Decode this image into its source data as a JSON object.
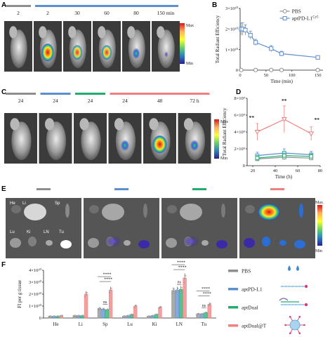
{
  "panels": {
    "A": {
      "label": "A",
      "groups": [
        {
          "color": "#8e8e8e",
          "times": [
            "2"
          ]
        },
        {
          "color": "#5b8fcf",
          "times": [
            "2",
            "30",
            "60",
            "80",
            "150 min"
          ]
        }
      ]
    },
    "C": {
      "label": "C",
      "groups": [
        {
          "color": "#8e8e8e",
          "times": [
            "24"
          ]
        },
        {
          "color": "#5b8fcf",
          "times": [
            "24"
          ]
        },
        {
          "color": "#1fae6e",
          "times": [
            "24"
          ]
        },
        {
          "color": "#f07f7f",
          "times": [
            "24",
            "48",
            "72 h"
          ]
        }
      ]
    },
    "E": {
      "label": "E",
      "organs_top": [
        "He",
        "Li",
        "Sp"
      ],
      "organs_bottom": [
        "Lu",
        "Ki",
        "LN",
        "Tu"
      ],
      "bars": [
        "#8e8e8e",
        "#5b8fcf",
        "#1fae6e",
        "#f07f7f"
      ]
    },
    "colorbar": {
      "max": "Max",
      "min": "Min"
    }
  },
  "chart_data": [
    {
      "panel": "B",
      "type": "line",
      "ylabel": "Total Radiant Efficiency",
      "xlabel": "Time (min)",
      "x_ticks": [
        "0",
        "50",
        "100",
        "150"
      ],
      "y_ticks": [
        "0",
        "1×10¹⁰",
        "2×10¹⁰",
        "3×10¹⁰"
      ],
      "xlim": [
        0,
        160
      ],
      "ylim": [
        0,
        30000000000.0
      ],
      "series": [
        {
          "name": "PBS",
          "color": "#8e8e8e",
          "marker": "circle",
          "x": [
            2,
            30,
            60,
            80,
            150
          ],
          "y": [
            100000000.0,
            100000000.0,
            100000000.0,
            100000000.0,
            100000000.0
          ],
          "err": [
            100000000.0,
            100000000.0,
            100000000.0,
            100000000.0,
            100000000.0
          ]
        },
        {
          "name": "aptPD-L1",
          "name_sup": "Cy5",
          "color": "#5b8fcf",
          "marker": "square",
          "x": [
            2,
            5,
            10,
            20,
            30,
            60,
            80,
            150
          ],
          "y": [
            20000000000.0,
            20000000000.0,
            19500000000.0,
            17000000000.0,
            13500000000.0,
            10500000000.0,
            8000000000.0,
            6200000000.0
          ],
          "err": [
            3000000000.0,
            3000000000.0,
            2500000000.0,
            2000000000.0,
            1500000000.0,
            1500000000.0,
            1200000000.0,
            500000000.0
          ]
        }
      ],
      "legend_position": "top-right"
    },
    {
      "panel": "D",
      "type": "line",
      "ylabel": "Total Radiant Efficiency",
      "xlabel": "Time (h)",
      "x_ticks": [
        "20",
        "40",
        "60",
        "80"
      ],
      "y_ticks": [
        "0",
        "2×10⁹",
        "4×10⁹",
        "6×10⁹",
        "8×10⁹"
      ],
      "xlim": [
        15,
        80
      ],
      "ylim": [
        0,
        8000000000.0
      ],
      "annotations": [
        "**",
        "**",
        "**"
      ],
      "series": [
        {
          "name": "PBS",
          "color": "#8e8e8e",
          "x": [
            24,
            48,
            72
          ],
          "y": [
            800000000.0,
            1000000000.0,
            900000000.0
          ],
          "err": [
            200000000.0,
            300000000.0,
            200000000.0
          ]
        },
        {
          "name": "aptPD-L1",
          "color": "#5b8fcf",
          "x": [
            24,
            48,
            72
          ],
          "y": [
            1200000000.0,
            1500000000.0,
            1300000000.0
          ],
          "err": [
            400000000.0,
            500000000.0,
            400000000.0
          ]
        },
        {
          "name": "aptDual",
          "color": "#1fae6e",
          "x": [
            24,
            48,
            72
          ],
          "y": [
            900000000.0,
            1200000000.0,
            1100000000.0
          ],
          "err": [
            300000000.0,
            300000000.0,
            300000000.0
          ]
        },
        {
          "name": "aptDual@T",
          "color": "#f07f7f",
          "x": [
            24,
            48,
            72
          ],
          "y": [
            4000000000.0,
            5500000000.0,
            3800000000.0
          ],
          "err": [
            1000000000.0,
            1600000000.0,
            800000000.0
          ]
        }
      ]
    },
    {
      "panel": "F",
      "type": "bar",
      "ylabel": "FI per g tissue",
      "categories": [
        "He",
        "Li",
        "Sp",
        "Lu",
        "Ki",
        "LN",
        "Tu"
      ],
      "y_ticks": [
        "0",
        "1×10¹⁰",
        "2×10¹⁰",
        "3×10¹⁰",
        "4×10¹⁰"
      ],
      "ylim": [
        0,
        40000000000.0
      ],
      "series": [
        {
          "name": "PBS",
          "color": "#8e8e8e",
          "values": [
            1500000000.0,
            2000000000.0,
            8000000000.0,
            1500000000.0,
            1500000000.0,
            23000000000.0,
            3500000000.0
          ]
        },
        {
          "name": "aptPD-L1",
          "color": "#5b8fcf",
          "values": [
            1500000000.0,
            2000000000.0,
            7500000000.0,
            2000000000.0,
            2000000000.0,
            23500000000.0,
            3500000000.0
          ]
        },
        {
          "name": "aptDual",
          "color": "#1fae6e",
          "values": [
            1500000000.0,
            2000000000.0,
            7000000000.0,
            3000000000.0,
            3000000000.0,
            24000000000.0,
            4500000000.0
          ]
        },
        {
          "name": "aptDual@T",
          "color": "#f07f7f",
          "values": [
            2000000000.0,
            20000000000.0,
            23500000000.0,
            10000000000.0,
            9000000000.0,
            33500000000.0,
            11500000000.0
          ]
        }
      ],
      "annotations": [
        "ns",
        "****",
        "****",
        "ns",
        "****",
        "****",
        "ns",
        "****",
        "****"
      ]
    }
  ],
  "legend_F": [
    "PBS",
    "aptPD-L1",
    "aptDual",
    "aptDual@T"
  ]
}
